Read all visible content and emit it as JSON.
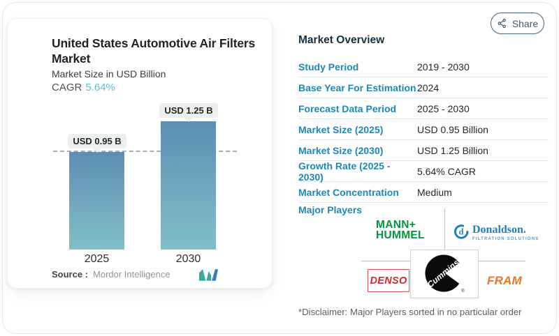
{
  "page": {
    "share_label": "Share"
  },
  "chart_card": {
    "title": "United States Automotive Air Filters Market",
    "subtitle": "Market Size in USD Billion",
    "cagr_label": "CAGR",
    "cagr_value": "5.64%",
    "source_label": "Source :",
    "source_value": "Mordor Intelligence"
  },
  "chart_data": {
    "type": "bar",
    "title": "United States Automotive Air Filters Market",
    "ylabel": "Market Size in USD Billion",
    "categories": [
      "2025",
      "2030"
    ],
    "values": [
      0.95,
      1.25
    ],
    "value_labels": [
      "USD 0.95 B",
      "USD 1.25 B"
    ],
    "cagr_pct": 5.64,
    "reference_line_value": 0.95,
    "grid": false,
    "legend": false,
    "source": "Mordor Intelligence"
  },
  "overview": {
    "heading": "Market Overview",
    "rows": [
      {
        "label": "Study Period",
        "value": "2019 - 2030"
      },
      {
        "label": "Base Year For Estimation",
        "value": "2024"
      },
      {
        "label": "Forecast Data Period",
        "value": "2025 - 2030"
      },
      {
        "label": "Market Size (2025)",
        "value": "USD 0.95 Billion"
      },
      {
        "label": "Market Size (2030)",
        "value": "USD 1.25 Billion"
      },
      {
        "label": "Growth Rate (2025 - 2030)",
        "value": "5.64% CAGR"
      },
      {
        "label": "Market Concentration",
        "value": "Medium"
      }
    ],
    "major_players_label": "Major Players",
    "disclaimer": "*Disclaimer: Major Players sorted in no particular order"
  },
  "logos": {
    "mann_hummel_line1": "MANN+",
    "mann_hummel_line2": "HUMMEL",
    "donaldson_icon_letter": "d",
    "donaldson_name": "Donaldson.",
    "donaldson_tagline": "FILTRATION SOLUTIONS",
    "denso": "DENSO",
    "cummins": "Cummins",
    "registered_mark": "®",
    "fram": "FRAM"
  },
  "colors": {
    "accent_teal": "#57c1d4",
    "table_label_blue": "#1e87b5",
    "bar_gradient_top": "#5d8db4",
    "bar_gradient_bottom": "#82bfc6",
    "mann_hummel_green": "#00953e",
    "donaldson_blue": "#1e7ec0",
    "denso_red": "#d8262d",
    "cummins_black": "#0a0a0a",
    "fram_orange": "#ee7623"
  }
}
